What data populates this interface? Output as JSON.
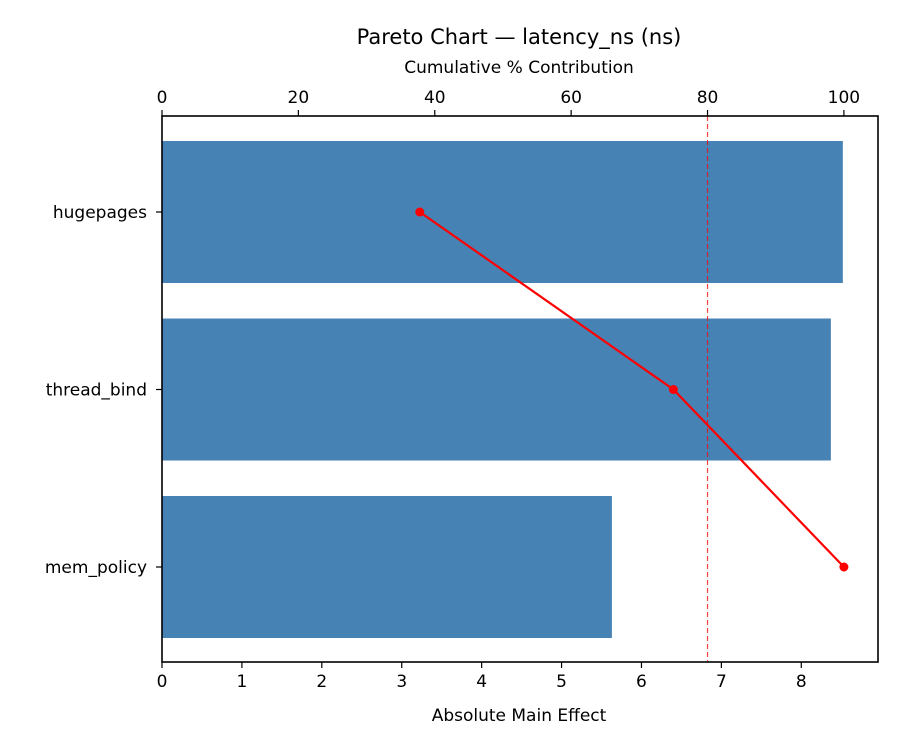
{
  "chart_data": {
    "type": "bar",
    "orientation": "horizontal",
    "title": "Pareto Chart — latency_ns (ns)",
    "xlabel": "Absolute Main Effect",
    "x2label": "Cumulative % Contribution",
    "categories": [
      "hugepages",
      "thread_bind",
      "mem_policy"
    ],
    "values": [
      8.52,
      8.37,
      5.63
    ],
    "cumulative_percent": [
      37.8,
      75.0,
      100.0
    ],
    "xlim": [
      0,
      8.96
    ],
    "x2lim": [
      0,
      105
    ],
    "xticks": [
      "0",
      "1",
      "2",
      "3",
      "4",
      "5",
      "6",
      "7",
      "8"
    ],
    "x2ticks": [
      "0",
      "20",
      "40",
      "60",
      "80",
      "100"
    ],
    "threshold_percent": 80,
    "grid": false,
    "legend": null,
    "series": [
      {
        "name": "Absolute Main Effect",
        "type": "bar",
        "color": "#4682b4",
        "values": [
          8.52,
          8.37,
          5.63
        ]
      },
      {
        "name": "Cumulative %",
        "type": "line",
        "color": "#ff0000",
        "values": [
          37.8,
          75.0,
          100.0
        ]
      }
    ],
    "colors": {
      "bar": "#4682b4",
      "line": "#ff0000",
      "threshold": "#ff0000"
    }
  }
}
